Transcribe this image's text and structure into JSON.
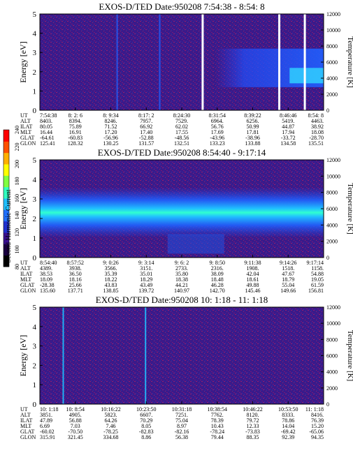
{
  "colorbar": {
    "title": "Second Harmonic Current",
    "ticks": [
      "240",
      "220",
      "200",
      "180",
      "160",
      "140",
      "120",
      "100",
      "80"
    ],
    "colors": [
      "#000000",
      "#1a0040",
      "#3a1090",
      "#2030d0",
      "#2070ff",
      "#20c0ff",
      "#30ffc0",
      "#80ff40",
      "#ffff00",
      "#ffb000",
      "#ff5000",
      "#ff0000"
    ]
  },
  "chart_data": [
    {
      "type": "heatmap",
      "title": "EXOS-D/TED   Date:950208   7:54:38 - 8:54: 8",
      "ylabel": "Energy [eV]",
      "ylabel_right": "Temperature [K]",
      "ylim": [
        0,
        5
      ],
      "y_ticks": [
        "0",
        "1",
        "2",
        "3",
        "4",
        "5"
      ],
      "y2lim": [
        0,
        12000
      ],
      "y2_ticks": [
        "0",
        "2000",
        "4000",
        "6000",
        "8000",
        "10000",
        "12000"
      ],
      "x_ticks": [
        "7:54:38",
        "8: 2: 6",
        "8: 9:34",
        "8:17: 2",
        "8:24:30",
        "8:31:54",
        "8:39:22",
        "8:46:46",
        "8:54: 8"
      ],
      "rows": [
        {
          "label": "UT",
          "values": [
            "7:54:38",
            "8: 2: 6",
            "8: 9:34",
            "8:17: 2",
            "8:24:30",
            "8:31:54",
            "8:39:22",
            "8:46:46",
            "8:54: 8"
          ]
        },
        {
          "label": "ALT",
          "values": [
            "8403.",
            "8394.",
            "8246.",
            "7957.",
            "7529.",
            "6964.",
            "6256.",
            "5419.",
            "4463."
          ]
        },
        {
          "label": "ILAT",
          "values": [
            "80.05",
            "75.89",
            "71.52",
            "66.92",
            "62.02",
            "56.76",
            "50.99",
            "44.87",
            "38.92"
          ]
        },
        {
          "label": "MLT",
          "values": [
            "16.44",
            "16.91",
            "17.20",
            "17.40",
            "17.55",
            "17.69",
            "17.81",
            "17.94",
            "18.08"
          ]
        },
        {
          "label": "GLAT",
          "values": [
            "-64.61",
            "-60.83",
            "-56.96",
            "-52.88",
            "-48.56",
            "-43.96",
            "-38.96",
            "-33.72",
            "-28.70"
          ]
        },
        {
          "label": "GLON",
          "values": [
            "125.41",
            "128.32",
            "130.25",
            "131.57",
            "132.51",
            "133.23",
            "133.88",
            "134.58",
            "135.51"
          ]
        }
      ]
    },
    {
      "type": "heatmap",
      "title": "EXOS-D/TED   Date:950208   8:54:40 - 9:17:14",
      "ylabel": "Energy [eV]",
      "ylabel_right": "Temperature [K]",
      "ylim": [
        0,
        5
      ],
      "y_ticks": [
        "0",
        "1",
        "2",
        "3",
        "4",
        "5"
      ],
      "y2lim": [
        0,
        12000
      ],
      "y2_ticks": [
        "0",
        "2000",
        "4000",
        "6000",
        "8000",
        "10000",
        "12000"
      ],
      "x_ticks": [
        "8:54:40",
        "8:57:52",
        "9: 0:26",
        "9: 3:14",
        "9: 6: 2",
        "9: 8:50",
        "9:11:38",
        "9:14:26",
        "9:17:14"
      ],
      "rows": [
        {
          "label": "UT",
          "values": [
            "8:54:40",
            "8:57:52",
            "9: 0:26",
            "9: 3:14",
            "9: 6: 2",
            "9: 8:50",
            "9:11:38",
            "9:14:26",
            "9:17:14"
          ]
        },
        {
          "label": "ALT",
          "values": [
            "4389.",
            "3938.",
            "3566.",
            "3151.",
            "2733.",
            "2316.",
            "1908.",
            "1518.",
            "1158."
          ]
        },
        {
          "label": "ILAT",
          "values": [
            "38.53",
            "36.50",
            "35.39",
            "35.01",
            "35.80",
            "38.09",
            "42.04",
            "47.67",
            "54.88"
          ]
        },
        {
          "label": "MLT",
          "values": [
            "18.09",
            "18.16",
            "18.22",
            "18.29",
            "18.38",
            "18.48",
            "18.61",
            "18.79",
            "19.05"
          ]
        },
        {
          "label": "GLAT",
          "values": [
            "-28.38",
            "25.66",
            "43.83",
            "43.49",
            "44.21",
            "46.28",
            "49.88",
            "55.04",
            "61.59"
          ]
        },
        {
          "label": "GLON",
          "values": [
            "135.60",
            "137.71",
            "138.85",
            "139.72",
            "140.97",
            "142.70",
            "145.46",
            "149.66",
            "156.81"
          ]
        }
      ]
    },
    {
      "type": "heatmap",
      "title": "EXOS-D/TED   Date:950208   10: 1:18 - 11: 1:18",
      "ylabel": "Energy [eV]",
      "ylabel_right": "Temperature [K]",
      "ylim": [
        0,
        5
      ],
      "y_ticks": [
        "0",
        "1",
        "2",
        "3",
        "4",
        "5"
      ],
      "y2lim": [
        0,
        12000
      ],
      "y2_ticks": [
        "0",
        "2000",
        "4000",
        "6000",
        "8000",
        "10000",
        "12000"
      ],
      "x_ticks": [
        "10: 1:18",
        "10: 8:54",
        "10:16:22",
        "10:23:50",
        "10:31:18",
        "10:38:54",
        "10:46:22",
        "10:53:50",
        "11: 1:18"
      ],
      "rows": [
        {
          "label": "UT",
          "values": [
            "10: 1:18",
            "10: 8:54",
            "10:16:22",
            "10:23:50",
            "10:31:18",
            "10:38:54",
            "10:46:22",
            "10:53:50",
            "11: 1:18"
          ]
        },
        {
          "label": "ALT",
          "values": [
            "3851.",
            "4905.",
            "5823.",
            "6607.",
            "7251.",
            "7762.",
            "8120.",
            "8333.",
            "8416."
          ]
        },
        {
          "label": "ILAT",
          "values": [
            "47.89",
            "56.88",
            "64.26",
            "70.29",
            "75.04",
            "78.39",
            "79.72",
            "78.86",
            "76.39"
          ]
        },
        {
          "label": "MLT",
          "values": [
            "6.69",
            "7.03",
            "7.46",
            "8.05",
            "8.97",
            "10.43",
            "12.33",
            "14.04",
            "15.20"
          ]
        },
        {
          "label": "GLAT",
          "values": [
            "-60.02",
            "-70.50",
            "-78.25",
            "-82.83",
            "-82.16",
            "-78.24",
            "-73.83",
            "-69.42",
            "-65.06"
          ]
        },
        {
          "label": "GLON",
          "values": [
            "315.91",
            "321.45",
            "334.68",
            "8.86",
            "56.38",
            "79.44",
            "88.35",
            "92.39",
            "94.35"
          ]
        }
      ]
    }
  ]
}
